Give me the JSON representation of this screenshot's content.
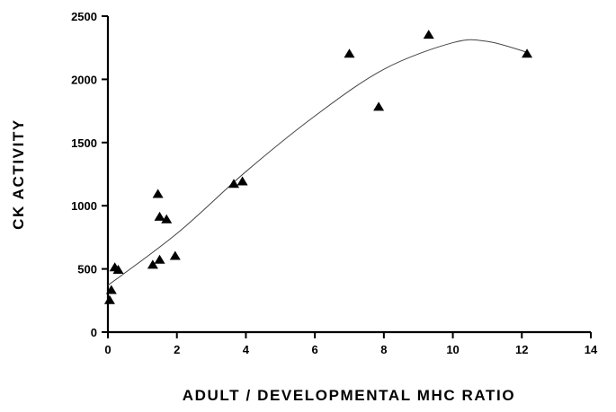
{
  "chart_data": {
    "type": "scatter",
    "title": "",
    "xlabel": "ADULT / DEVELOPMENTAL MHC RATIO",
    "ylabel": "CK ACTIVITY",
    "xlim": [
      0,
      14
    ],
    "ylim": [
      0,
      2500
    ],
    "x_ticks": [
      0,
      2,
      4,
      6,
      8,
      10,
      12,
      14
    ],
    "y_ticks": [
      0,
      500,
      1000,
      1500,
      2000,
      2500
    ],
    "grid": false,
    "legend": "none",
    "marker": "triangle",
    "colors": {
      "marker": "#000000",
      "axis": "#000000",
      "curve": "#444444"
    },
    "series": [
      {
        "points": [
          {
            "x": 0.05,
            "y": 250
          },
          {
            "x": 0.1,
            "y": 330
          },
          {
            "x": 0.2,
            "y": 510
          },
          {
            "x": 0.3,
            "y": 490
          },
          {
            "x": 1.3,
            "y": 530
          },
          {
            "x": 1.45,
            "y": 1090
          },
          {
            "x": 1.5,
            "y": 910
          },
          {
            "x": 1.5,
            "y": 570
          },
          {
            "x": 1.7,
            "y": 890
          },
          {
            "x": 1.95,
            "y": 600
          },
          {
            "x": 3.65,
            "y": 1170
          },
          {
            "x": 3.9,
            "y": 1190
          },
          {
            "x": 7.0,
            "y": 2200
          },
          {
            "x": 7.85,
            "y": 1780
          },
          {
            "x": 9.3,
            "y": 2350
          },
          {
            "x": 12.15,
            "y": 2200
          }
        ]
      }
    ],
    "fit_curve": {
      "type": "polynomial",
      "points": [
        {
          "x": 0,
          "y": 370
        },
        {
          "x": 2,
          "y": 780
        },
        {
          "x": 4,
          "y": 1270
        },
        {
          "x": 6,
          "y": 1710
        },
        {
          "x": 8,
          "y": 2080
        },
        {
          "x": 10,
          "y": 2290
        },
        {
          "x": 11,
          "y": 2300
        },
        {
          "x": 12.2,
          "y": 2210
        }
      ]
    }
  }
}
